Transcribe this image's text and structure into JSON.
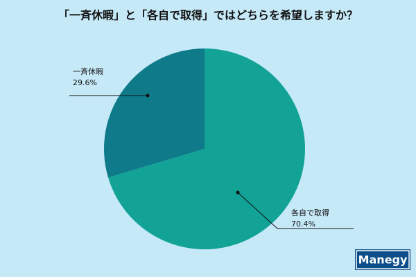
{
  "chart_data": {
    "type": "pie",
    "title": "「一斉休暇」と「各自で取得」ではどちらを希望しますか？",
    "categories": [
      "各自で取得",
      "一斉休暇"
    ],
    "values": [
      70.4,
      29.6
    ],
    "value_labels": [
      "70.4%",
      "29.6%"
    ],
    "colors": [
      "#12a396",
      "#0e7a8a"
    ]
  },
  "logo": "Manegy"
}
